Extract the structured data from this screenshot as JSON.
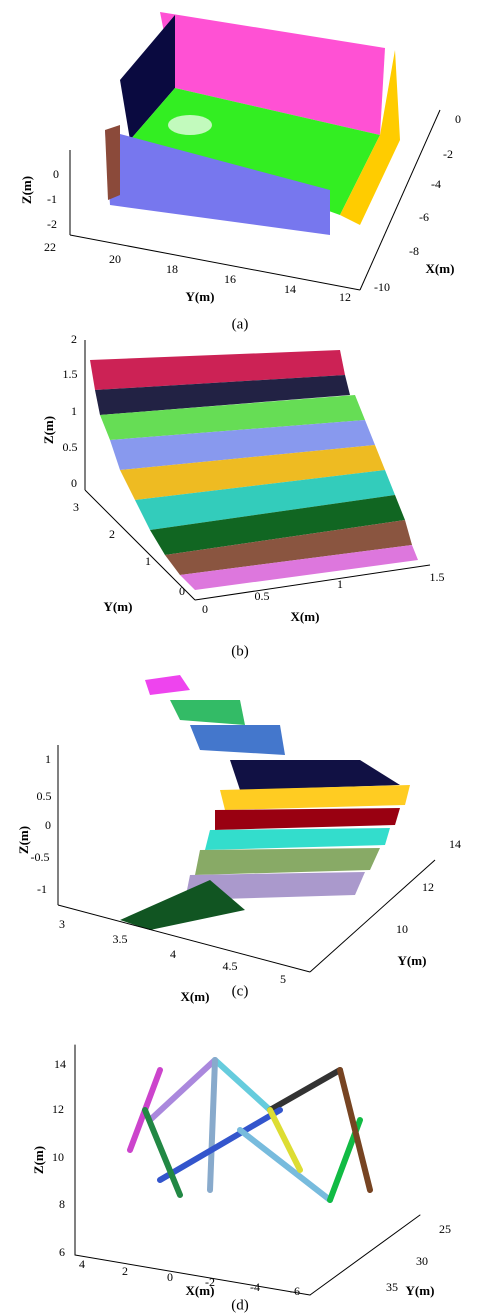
{
  "panels": [
    {
      "caption": "(a)",
      "axes": [
        {
          "label": "Z(m)",
          "ticks": [
            0,
            -1,
            -2
          ]
        },
        {
          "label": "Y(m)",
          "ticks": [
            22,
            20,
            18,
            16,
            14,
            12
          ]
        },
        {
          "label": "X(m)",
          "ticks": [
            0,
            -2,
            -4,
            -6,
            -8,
            -10
          ]
        }
      ]
    },
    {
      "caption": "(b)",
      "axes": [
        {
          "label": "Z(m)",
          "ticks": [
            2,
            1.5,
            1,
            0.5,
            0
          ]
        },
        {
          "label": "Y(m)",
          "ticks": [
            3,
            2,
            1,
            0
          ]
        },
        {
          "label": "X(m)",
          "ticks": [
            0,
            0.5,
            1,
            1.5
          ]
        }
      ]
    },
    {
      "caption": "(c)",
      "axes": [
        {
          "label": "Z(m)",
          "ticks": [
            1,
            0.5,
            0,
            -0.5,
            -1
          ]
        },
        {
          "label": "X(m)",
          "ticks": [
            3,
            3.5,
            4,
            4.5,
            5
          ]
        },
        {
          "label": "Y(m)",
          "ticks": [
            14,
            12,
            10
          ]
        }
      ]
    },
    {
      "caption": "(d)",
      "axes": [
        {
          "label": "Z(m)",
          "ticks": [
            14,
            12,
            10,
            8,
            6
          ]
        },
        {
          "label": "X(m)",
          "ticks": [
            4,
            2,
            0,
            -2,
            -4,
            -6
          ]
        },
        {
          "label": "Y(m)",
          "ticks": [
            25,
            30,
            35
          ]
        }
      ]
    }
  ]
}
